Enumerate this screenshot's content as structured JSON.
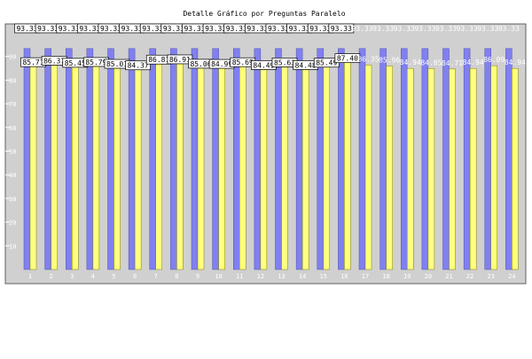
{
  "chart_data": {
    "type": "bar",
    "title": "Detalle Gráfico por Preguntas Paralelo",
    "categories": [
      "1",
      "2",
      "3",
      "4",
      "5",
      "6",
      "7",
      "8",
      "9",
      "10",
      "11",
      "12",
      "13",
      "14",
      "15",
      "16",
      "17",
      "18",
      "19",
      "20",
      "21",
      "22",
      "23",
      "24"
    ],
    "series": [
      {
        "values": [
          93.33,
          93.33,
          93.33,
          93.33,
          93.33,
          93.33,
          93.33,
          93.33,
          93.33,
          93.33,
          93.33,
          93.33,
          93.33,
          93.33,
          93.33,
          93.33,
          93.33,
          93.33,
          93.33,
          93.33,
          93.33,
          93.33,
          93.33,
          93.33
        ],
        "color": "#8080f0"
      },
      {
        "values": [
          85.71,
          86.37,
          85.45,
          85.79,
          85.01,
          84.37,
          86.81,
          86.91,
          85.06,
          84.99,
          85.69,
          84.49,
          85.63,
          84.48,
          85.49,
          87.4,
          86.35,
          85.96,
          84.94,
          84.85,
          84.71,
          84.94,
          86.09,
          84.94
        ],
        "color": "#ffff80"
      }
    ],
    "ylim": [
      0,
      100
    ],
    "yticks": [
      10,
      20,
      30,
      40,
      50,
      60,
      70,
      80,
      90
    ],
    "grid": false
  },
  "colors": {
    "plot_background": "#d0d0d0",
    "series_a": "#8080f0",
    "series_b": "#ffff80"
  }
}
